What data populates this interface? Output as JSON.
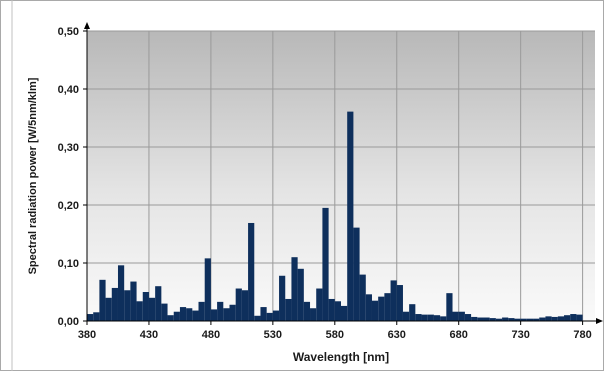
{
  "chart_data": {
    "type": "bar",
    "xlabel": "Wavelength [nm]",
    "ylabel": "Spectral radiation power [W/5nm/klm]",
    "xlim": [
      380,
      790
    ],
    "ylim": [
      0,
      0.5
    ],
    "x_ticks": [
      380,
      430,
      480,
      530,
      580,
      630,
      680,
      730,
      780
    ],
    "x_tick_labels": [
      "380",
      "430",
      "480",
      "530",
      "580",
      "630",
      "680",
      "730",
      "780"
    ],
    "y_ticks": [
      0,
      0.1,
      0.2,
      0.3,
      0.4,
      0.5
    ],
    "y_tick_labels": [
      "0,00",
      "0,10",
      "0,20",
      "0,30",
      "0,40",
      "0,50"
    ],
    "grid": true,
    "bar_color": "#0e2f5c",
    "bin_width": 5,
    "x": [
      380,
      385,
      390,
      395,
      400,
      405,
      410,
      415,
      420,
      425,
      430,
      435,
      440,
      445,
      450,
      455,
      460,
      465,
      470,
      475,
      480,
      485,
      490,
      495,
      500,
      505,
      510,
      515,
      520,
      525,
      530,
      535,
      540,
      545,
      550,
      555,
      560,
      565,
      570,
      575,
      580,
      585,
      590,
      595,
      600,
      605,
      610,
      615,
      620,
      625,
      630,
      635,
      640,
      645,
      650,
      655,
      660,
      665,
      670,
      675,
      680,
      685,
      690,
      695,
      700,
      705,
      710,
      715,
      720,
      725,
      730,
      735,
      740,
      745,
      750,
      755,
      760,
      765,
      770,
      775
    ],
    "values": [
      0.012,
      0.015,
      0.071,
      0.04,
      0.057,
      0.096,
      0.053,
      0.068,
      0.034,
      0.05,
      0.04,
      0.06,
      0.03,
      0.01,
      0.016,
      0.024,
      0.022,
      0.018,
      0.033,
      0.108,
      0.02,
      0.033,
      0.022,
      0.028,
      0.056,
      0.053,
      0.169,
      0.009,
      0.024,
      0.014,
      0.018,
      0.078,
      0.038,
      0.11,
      0.09,
      0.033,
      0.022,
      0.056,
      0.195,
      0.038,
      0.034,
      0.026,
      0.361,
      0.161,
      0.08,
      0.046,
      0.035,
      0.042,
      0.048,
      0.07,
      0.062,
      0.016,
      0.029,
      0.012,
      0.011,
      0.011,
      0.01,
      0.008,
      0.048,
      0.016,
      0.016,
      0.012,
      0.007,
      0.006,
      0.006,
      0.005,
      0.004,
      0.006,
      0.005,
      0.004,
      0.004,
      0.004,
      0.004,
      0.006,
      0.008,
      0.007,
      0.008,
      0.01,
      0.012,
      0.011
    ]
  }
}
